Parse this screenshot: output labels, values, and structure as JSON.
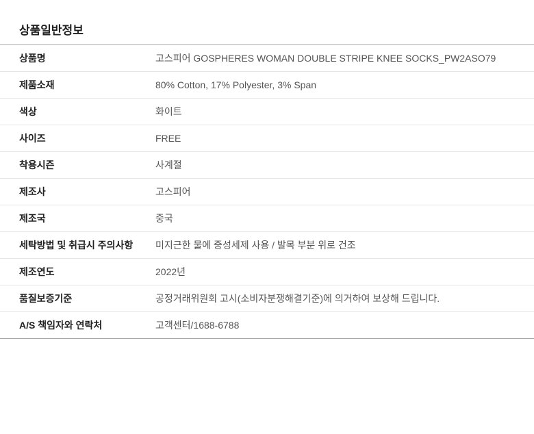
{
  "section_title": "상품일반정보",
  "rows": [
    {
      "label": "상품명",
      "value": "고스피어 GOSPHERES WOMAN DOUBLE STRIPE KNEE SOCKS_PW2ASO79"
    },
    {
      "label": "제품소재",
      "value": "80% Cotton, 17% Polyester, 3% Span"
    },
    {
      "label": "색상",
      "value": "화이트"
    },
    {
      "label": "사이즈",
      "value": "FREE"
    },
    {
      "label": "착용시즌",
      "value": "사계절"
    },
    {
      "label": "제조사",
      "value": "고스피어"
    },
    {
      "label": "제조국",
      "value": "중국"
    },
    {
      "label": "세탁방법 및 취급시 주의사항",
      "value": "미지근한 물에 중성세제 사용 / 발목 부분 위로 건조"
    },
    {
      "label": "제조연도",
      "value": "2022년"
    },
    {
      "label": "품질보증기준",
      "value": "공정거래위원회 고시(소비자분쟁해결기준)에 의거하여  보상해 드립니다."
    },
    {
      "label": "A/S 책임자와 연락처",
      "value": "고객센터/1688-6788"
    }
  ]
}
